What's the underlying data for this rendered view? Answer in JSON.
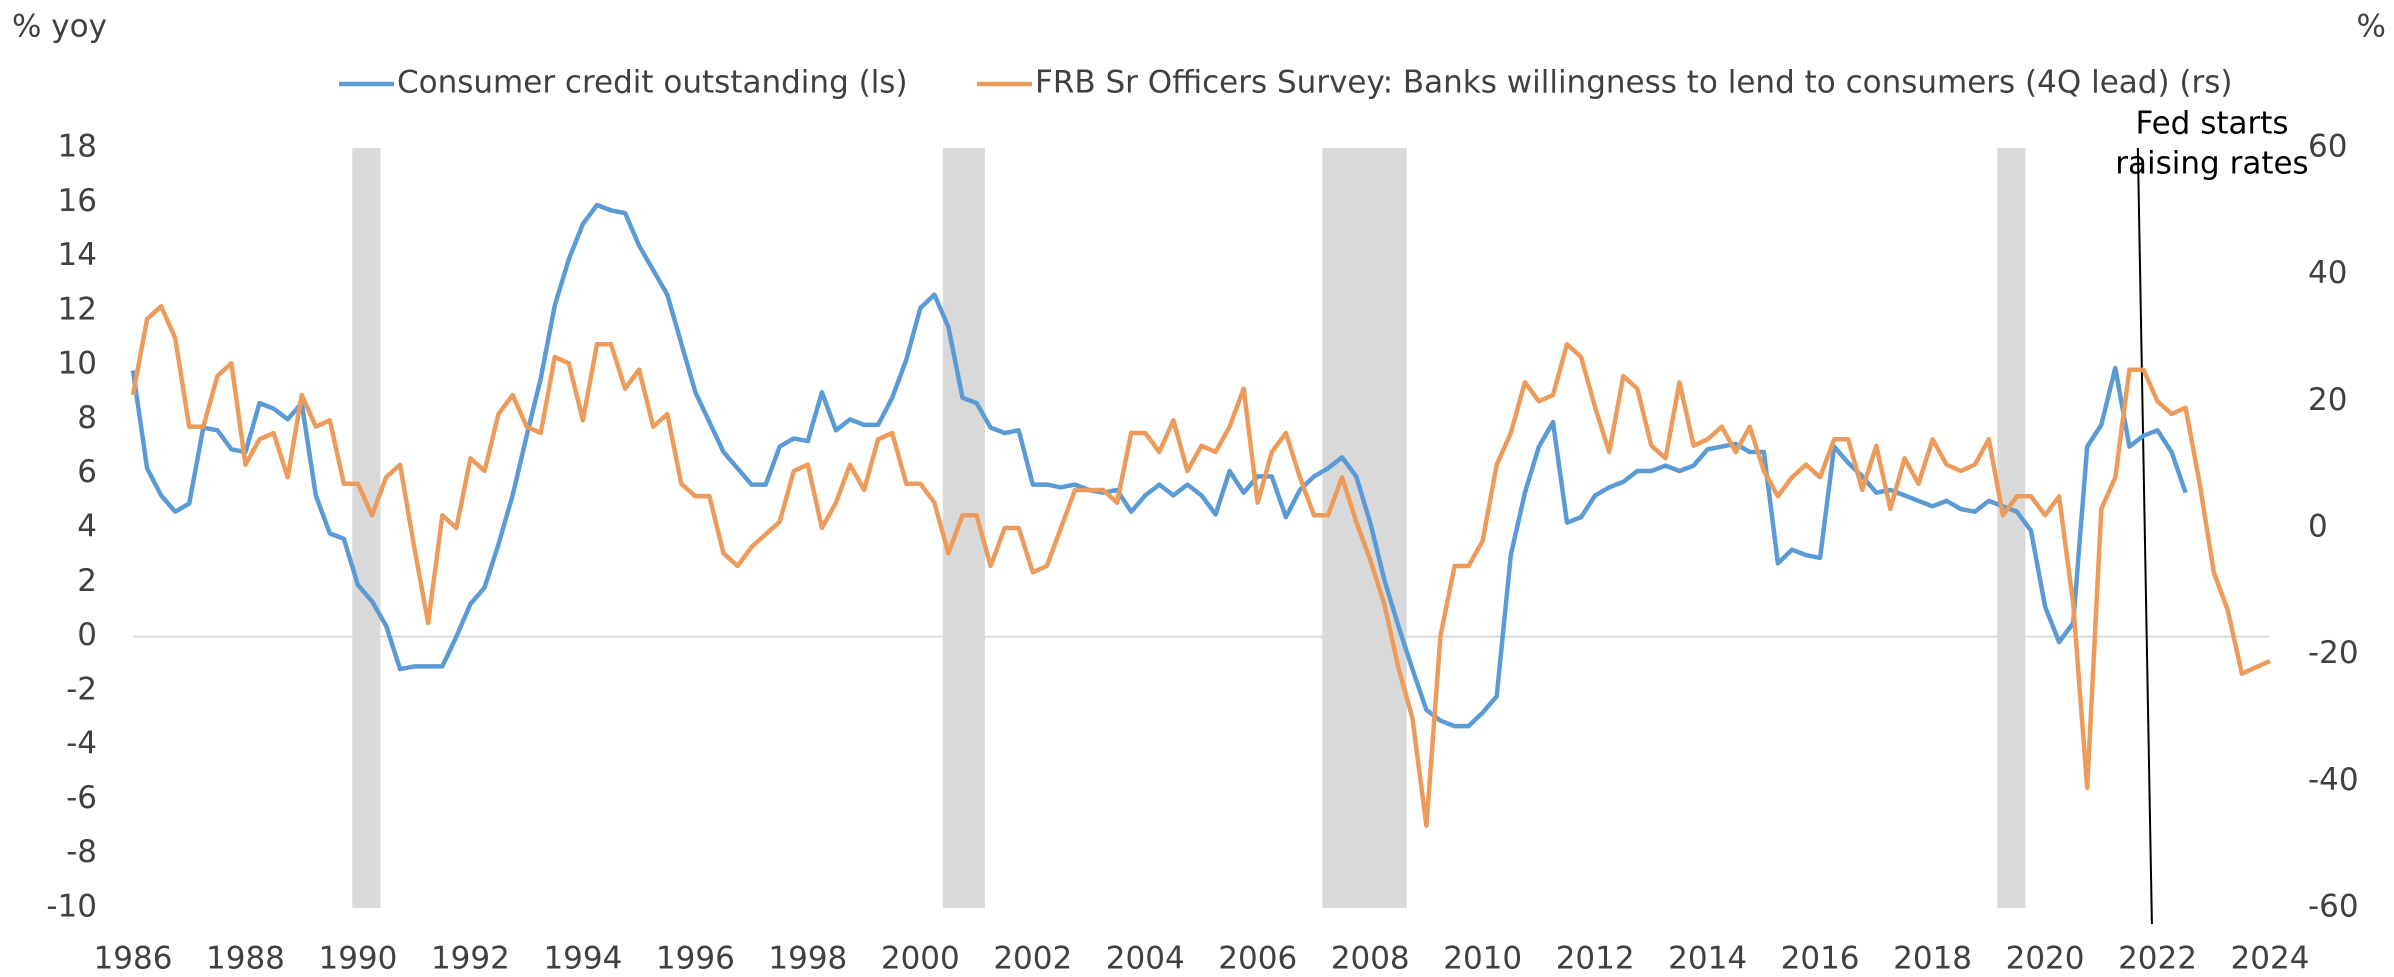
{
  "chart_data": {
    "type": "line",
    "y_label": "% yoy",
    "y2_label": "%",
    "xlim": [
      1986,
      2024
    ],
    "xticks": [
      1986,
      1988,
      1990,
      1992,
      1994,
      1996,
      1998,
      2000,
      2002,
      2004,
      2006,
      2008,
      2010,
      2012,
      2014,
      2016,
      2018,
      2020,
      2022,
      2024
    ],
    "ylim": [
      -10,
      18
    ],
    "yticks": [
      -10,
      -8,
      -6,
      -4,
      -2,
      0,
      2,
      4,
      6,
      8,
      10,
      12,
      14,
      16,
      18
    ],
    "y2lim": [
      -60,
      60
    ],
    "y2ticks": [
      -60,
      -40,
      -20,
      0,
      20,
      40,
      60
    ],
    "grid": false,
    "legend": "top",
    "shaded_ranges": [
      [
        1989.9,
        1990.4
      ],
      [
        2000.4,
        2001.15
      ],
      [
        2007.15,
        2008.65
      ],
      [
        2019.15,
        2019.65
      ]
    ],
    "shade_color": "#d9d9d9",
    "annotation": {
      "lines": [
        "Fed starts",
        "raising rates"
      ],
      "x": [
        2021.65,
        2021.9
      ]
    },
    "series": [
      {
        "name": "Consumer credit outstanding (ls)",
        "color": "#5b9bd5",
        "axis": "y",
        "x": [
          1986,
          1986.25,
          1986.5,
          1986.75,
          1987,
          1987.25,
          1987.5,
          1987.75,
          1988,
          1988.25,
          1988.5,
          1988.75,
          1989,
          1989.25,
          1989.5,
          1989.75,
          1990,
          1990.25,
          1990.5,
          1990.75,
          1991,
          1991.25,
          1991.5,
          1991.75,
          1992,
          1992.25,
          1992.5,
          1992.75,
          1993,
          1993.25,
          1993.5,
          1993.75,
          1994,
          1994.25,
          1994.5,
          1994.75,
          1995,
          1995.25,
          1995.5,
          1995.75,
          1996,
          1996.25,
          1996.5,
          1996.75,
          1997,
          1997.25,
          1997.5,
          1997.75,
          1998,
          1998.25,
          1998.5,
          1998.75,
          1999,
          1999.25,
          1999.5,
          1999.75,
          2000,
          2000.25,
          2000.5,
          2000.75,
          2001,
          2001.25,
          2001.5,
          2001.75,
          2002,
          2002.25,
          2002.5,
          2002.75,
          2003,
          2003.25,
          2003.5,
          2003.75,
          2004,
          2004.25,
          2004.5,
          2004.75,
          2005,
          2005.25,
          2005.5,
          2005.75,
          2006,
          2006.25,
          2006.5,
          2006.75,
          2007,
          2007.25,
          2007.5,
          2007.75,
          2008,
          2008.25,
          2008.5,
          2008.75,
          2009,
          2009.25,
          2009.5,
          2009.75,
          2010,
          2010.25,
          2010.5,
          2010.75,
          2011,
          2011.25,
          2011.5,
          2011.75,
          2012,
          2012.25,
          2012.5,
          2012.75,
          2013,
          2013.25,
          2013.5,
          2013.75,
          2014,
          2014.25,
          2014.5,
          2014.75,
          2015,
          2015.25,
          2015.5,
          2015.75,
          2016,
          2016.25,
          2016.5,
          2016.75,
          2017,
          2017.25,
          2017.5,
          2017.75,
          2018,
          2018.25,
          2018.5,
          2018.75,
          2019,
          2019.25,
          2019.5,
          2019.75,
          2020,
          2020.25,
          2020.5,
          2020.75,
          2021,
          2021.25,
          2021.5,
          2021.75,
          2022,
          2022.25,
          2022.5
        ],
        "values": [
          9.8,
          6.2,
          5.2,
          4.6,
          4.9,
          7.7,
          7.6,
          6.9,
          6.8,
          8.6,
          8.4,
          8.0,
          8.6,
          5.2,
          3.8,
          3.6,
          1.9,
          1.3,
          0.4,
          -1.2,
          -1.1,
          -1.1,
          -1.1,
          0.0,
          1.2,
          1.8,
          3.4,
          5.2,
          7.4,
          9.5,
          12.2,
          13.9,
          15.2,
          15.9,
          15.7,
          15.6,
          14.4,
          13.5,
          12.6,
          10.8,
          9.0,
          7.9,
          6.8,
          6.2,
          5.6,
          5.6,
          7.0,
          7.3,
          7.2,
          9.0,
          7.6,
          8.0,
          7.8,
          7.8,
          8.8,
          10.2,
          12.1,
          12.6,
          11.4,
          8.8,
          8.6,
          7.7,
          7.5,
          7.6,
          5.6,
          5.6,
          5.5,
          5.6,
          5.4,
          5.3,
          5.4,
          4.6,
          5.2,
          5.6,
          5.2,
          5.6,
          5.2,
          4.5,
          6.1,
          5.3,
          5.9,
          5.9,
          4.4,
          5.4,
          5.9,
          6.2,
          6.6,
          5.9,
          4.2,
          2.1,
          0.4,
          -1.2,
          -2.7,
          -3.1,
          -3.3,
          -3.3,
          -2.8,
          -2.2,
          3.0,
          5.3,
          7.0,
          7.9,
          4.2,
          4.4,
          5.2,
          5.5,
          5.7,
          6.1,
          6.1,
          6.3,
          6.1,
          6.3,
          6.9,
          7.0,
          7.1,
          6.8,
          6.8,
          2.7,
          3.2,
          3.0,
          2.9,
          7.0,
          6.4,
          5.9,
          5.3,
          5.4,
          5.2,
          5.0,
          4.8,
          5.0,
          4.7,
          4.6,
          5.0,
          4.8,
          4.6,
          3.9,
          1.1,
          -0.2,
          0.5,
          7.0,
          7.8,
          9.9,
          7.0,
          7.4,
          7.6,
          6.8,
          5.3
        ]
      },
      {
        "name": "FRB Sr Officers Survey: Banks willingness to lend to consumers (4Q lead) (rs)",
        "color": "#ed9b5a",
        "axis": "y2",
        "x": [
          1986,
          1986.25,
          1986.5,
          1986.75,
          1987,
          1987.25,
          1987.5,
          1987.75,
          1988,
          1988.25,
          1988.5,
          1988.75,
          1989,
          1989.25,
          1989.5,
          1989.75,
          1990,
          1990.25,
          1990.5,
          1990.75,
          1991,
          1991.25,
          1991.5,
          1991.75,
          1992,
          1992.25,
          1992.5,
          1992.75,
          1993,
          1993.25,
          1993.5,
          1993.75,
          1994,
          1994.25,
          1994.5,
          1994.75,
          1995,
          1995.25,
          1995.5,
          1995.75,
          1996,
          1996.25,
          1996.5,
          1996.75,
          1997,
          1997.25,
          1997.5,
          1997.75,
          1998,
          1998.25,
          1998.5,
          1998.75,
          1999,
          1999.25,
          1999.5,
          1999.75,
          2000,
          2000.25,
          2000.5,
          2000.75,
          2001,
          2001.25,
          2001.5,
          2001.75,
          2002,
          2002.25,
          2002.5,
          2002.75,
          2003,
          2003.25,
          2003.5,
          2003.75,
          2004,
          2004.25,
          2004.5,
          2004.75,
          2005,
          2005.25,
          2005.5,
          2005.75,
          2006,
          2006.25,
          2006.5,
          2006.75,
          2007,
          2007.25,
          2007.5,
          2007.75,
          2008,
          2008.25,
          2008.5,
          2008.75,
          2009,
          2009.25,
          2009.5,
          2009.75,
          2010,
          2010.25,
          2010.5,
          2010.75,
          2011,
          2011.25,
          2011.5,
          2011.75,
          2012,
          2012.25,
          2012.5,
          2012.75,
          2013,
          2013.25,
          2013.5,
          2013.75,
          2014,
          2014.25,
          2014.5,
          2014.75,
          2015,
          2015.25,
          2015.5,
          2015.75,
          2016,
          2016.25,
          2016.5,
          2016.75,
          2017,
          2017.25,
          2017.5,
          2017.75,
          2018,
          2018.25,
          2018.5,
          2018.75,
          2019,
          2019.25,
          2019.5,
          2019.75,
          2020,
          2020.25,
          2020.5,
          2020.75,
          2021,
          2021.25,
          2021.5,
          2021.75,
          2022,
          2022.25,
          2022.5,
          2022.75,
          2023,
          2023.25,
          2023.5,
          2023.75,
          2024
        ],
        "values": [
          21,
          33,
          35,
          30,
          16,
          16,
          24,
          26,
          10,
          14,
          15,
          8,
          21,
          16,
          17,
          7,
          7,
          2,
          8,
          10,
          -3,
          -15,
          2,
          0,
          11,
          9,
          18,
          21,
          16,
          15,
          27,
          26,
          17,
          29,
          29,
          22,
          25,
          16,
          18,
          7,
          5,
          5,
          -4,
          -6,
          -3,
          -1,
          1,
          9,
          10,
          0,
          4,
          10,
          6,
          14,
          15,
          7,
          7,
          4,
          -4,
          2,
          2,
          -6,
          0,
          0,
          -7,
          -6,
          0,
          6,
          6,
          6,
          4,
          15,
          15,
          12,
          17,
          9,
          13,
          12,
          16,
          22,
          4,
          12,
          15,
          8,
          2,
          2,
          8,
          1,
          -5,
          -12,
          -22,
          -30,
          -47,
          -17,
          -6,
          -6,
          -2,
          10,
          15,
          23,
          20,
          21,
          29,
          27,
          19,
          12,
          24,
          22,
          13,
          11,
          23,
          13,
          14,
          16,
          12,
          16,
          9,
          5,
          8,
          10,
          8,
          14,
          14,
          6,
          13,
          3,
          11,
          7,
          14,
          10,
          9,
          10,
          14,
          2,
          5,
          5,
          2,
          5,
          -12,
          -41,
          3,
          8,
          25,
          25,
          20,
          18,
          19,
          7,
          -7,
          -13,
          -23,
          -22,
          -21
        ]
      }
    ]
  }
}
